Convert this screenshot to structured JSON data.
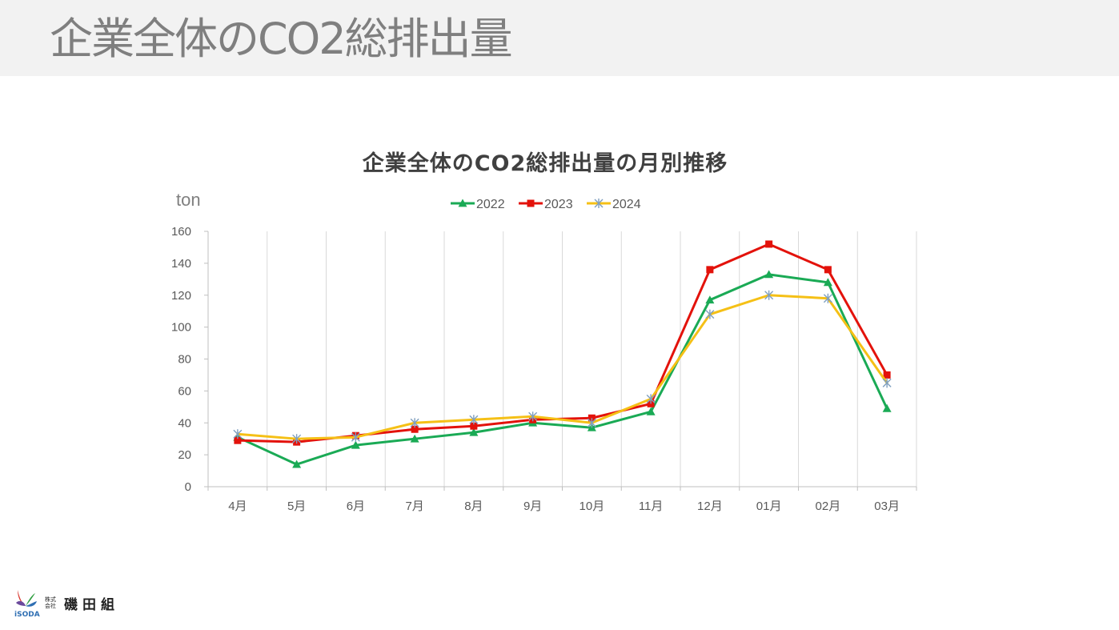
{
  "slide": {
    "title": "企業全体のCO2総排出量"
  },
  "logo": {
    "brand_text": "iSODA",
    "kabu": "株式会社",
    "company": "磯田組"
  },
  "colors": {
    "header_bg": "#f2f2f2",
    "s2022": "#1aaa55",
    "s2023": "#e3120b",
    "s2024": "#f5c016",
    "star2024": "#7f9fbf"
  },
  "chart_data": {
    "type": "line",
    "title": "企業全体のCO2総排出量の月別推移",
    "ylabel": "ton",
    "xlabel": "",
    "categories": [
      "4月",
      "5月",
      "6月",
      "7月",
      "8月",
      "9月",
      "10月",
      "11月",
      "12月",
      "01月",
      "02月",
      "03月"
    ],
    "ylim": [
      0,
      160
    ],
    "yticks": [
      0,
      20,
      40,
      60,
      80,
      100,
      120,
      140,
      160
    ],
    "legend_position": "top",
    "grid": "vertical",
    "series": [
      {
        "name": "2022",
        "marker": "triangle",
        "color": "#1aaa55",
        "values": [
          31,
          14,
          26,
          30,
          34,
          40,
          37,
          47,
          117,
          133,
          128,
          49
        ]
      },
      {
        "name": "2023",
        "marker": "square",
        "color": "#e3120b",
        "values": [
          29,
          28,
          32,
          36,
          38,
          42,
          43,
          52,
          136,
          152,
          136,
          70
        ]
      },
      {
        "name": "2024",
        "marker": "star",
        "color": "#f5c016",
        "values": [
          33,
          30,
          31,
          40,
          42,
          44,
          40,
          55,
          108,
          120,
          118,
          65
        ]
      }
    ]
  }
}
